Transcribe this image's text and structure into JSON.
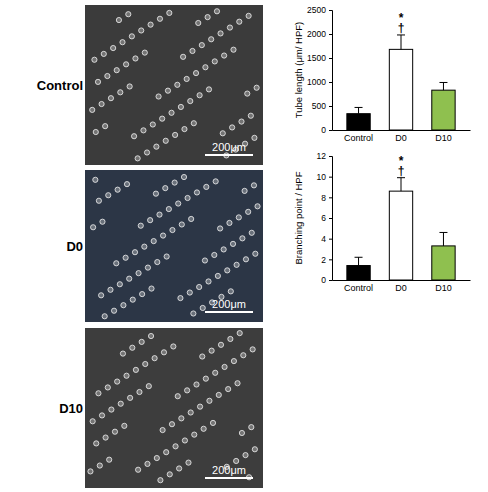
{
  "image_panels": [
    {
      "label": "Control",
      "scale_bar": "200μm"
    },
    {
      "label": "D0",
      "scale_bar": "200μm"
    },
    {
      "label": "D10",
      "scale_bar": "200μm"
    }
  ],
  "chart_data": [
    {
      "type": "bar",
      "y_label": "Tube length (μm/ HPF)",
      "categories": [
        "Control",
        "D0",
        "D10"
      ],
      "values": [
        340,
        1680,
        830
      ],
      "errors": [
        130,
        300,
        160
      ],
      "colors": [
        "#000000",
        "#ffffff",
        "#8fc04f"
      ],
      "ylim": [
        0,
        2500
      ],
      "yticks": [
        0,
        500,
        1000,
        1500,
        2000,
        2500
      ],
      "annotations": [
        {
          "x": "D0",
          "text": "*"
        },
        {
          "x": "D0",
          "text": "†"
        }
      ]
    },
    {
      "type": "bar",
      "y_label": "Branching point / HPF",
      "categories": [
        "Control",
        "D0",
        "D10"
      ],
      "values": [
        1.4,
        8.6,
        3.3
      ],
      "errors": [
        0.8,
        1.3,
        1.3
      ],
      "colors": [
        "#000000",
        "#ffffff",
        "#8fc04f"
      ],
      "ylim": [
        0,
        12
      ],
      "yticks": [
        0,
        2,
        4,
        6,
        8,
        10,
        12
      ],
      "annotations": [
        {
          "x": "D0",
          "text": "*"
        },
        {
          "x": "D0",
          "text": "†"
        }
      ]
    }
  ]
}
